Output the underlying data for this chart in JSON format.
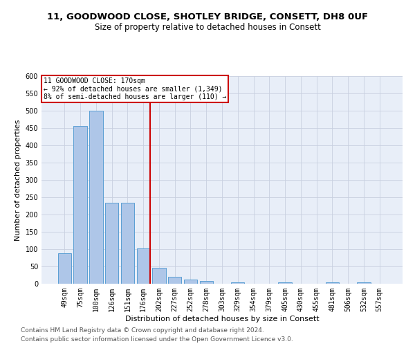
{
  "title_line1": "11, GOODWOOD CLOSE, SHOTLEY BRIDGE, CONSETT, DH8 0UF",
  "title_line2": "Size of property relative to detached houses in Consett",
  "xlabel": "Distribution of detached houses by size in Consett",
  "ylabel": "Number of detached properties",
  "bar_labels": [
    "49sqm",
    "75sqm",
    "100sqm",
    "126sqm",
    "151sqm",
    "176sqm",
    "202sqm",
    "227sqm",
    "252sqm",
    "278sqm",
    "303sqm",
    "329sqm",
    "354sqm",
    "379sqm",
    "405sqm",
    "430sqm",
    "455sqm",
    "481sqm",
    "506sqm",
    "532sqm",
    "557sqm"
  ],
  "bar_values": [
    88,
    457,
    500,
    235,
    235,
    103,
    47,
    20,
    13,
    8,
    0,
    5,
    0,
    0,
    4,
    0,
    0,
    4,
    0,
    4,
    0
  ],
  "bar_color": "#aec6e8",
  "bar_edge_color": "#5a9fd4",
  "vline_x": 5.42,
  "vline_color": "#cc0000",
  "annotation_text": "11 GOODWOOD CLOSE: 170sqm\n← 92% of detached houses are smaller (1,349)\n8% of semi-detached houses are larger (110) →",
  "annotation_box_color": "#cc0000",
  "ylim": [
    0,
    600
  ],
  "yticks": [
    0,
    50,
    100,
    150,
    200,
    250,
    300,
    350,
    400,
    450,
    500,
    550,
    600
  ],
  "footer_line1": "Contains HM Land Registry data © Crown copyright and database right 2024.",
  "footer_line2": "Contains public sector information licensed under the Open Government Licence v3.0.",
  "background_color": "#e8eef8",
  "grid_color": "#c8d0e0",
  "title_fontsize": 9.5,
  "subtitle_fontsize": 8.5,
  "axis_label_fontsize": 8,
  "tick_fontsize": 7,
  "annotation_fontsize": 7,
  "footer_fontsize": 6.5
}
